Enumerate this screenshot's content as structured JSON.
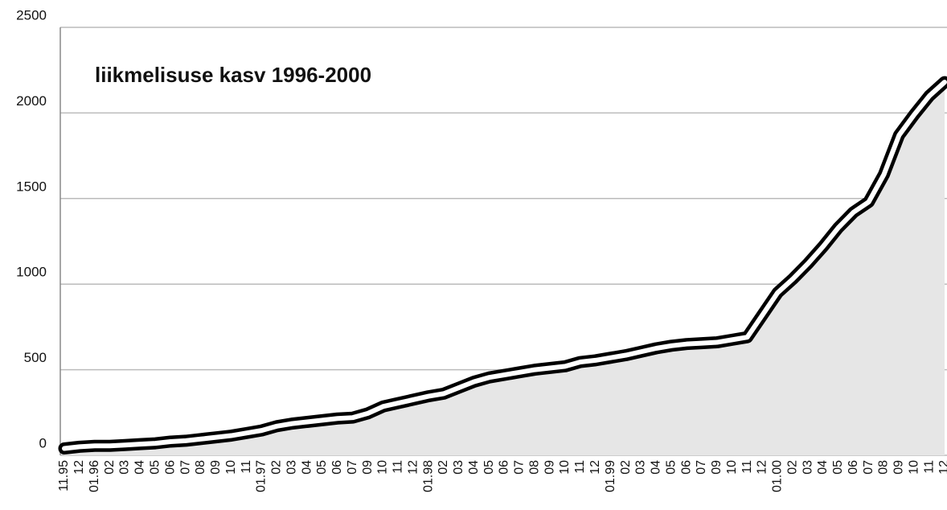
{
  "chart_data": {
    "type": "area",
    "title": "liikmelisuse kasv 1996-2000",
    "categories": [
      "11.95",
      "12",
      "01.96",
      "02",
      "03",
      "04",
      "05",
      "06",
      "07",
      "08",
      "09",
      "10",
      "11",
      "01.97",
      "02",
      "03",
      "04",
      "05",
      "06",
      "07",
      "09",
      "10",
      "11",
      "12",
      "01.98",
      "02",
      "03",
      "04",
      "05",
      "06",
      "07",
      "08",
      "09",
      "10",
      "11",
      "12",
      "01.99",
      "02",
      "03",
      "04",
      "05",
      "06",
      "07",
      "09",
      "10",
      "11",
      "12",
      "01.00",
      "02",
      "03",
      "04",
      "05",
      "06",
      "07",
      "08",
      "09",
      "10",
      "11",
      "12"
    ],
    "series": [
      {
        "color": "#e6e6e6",
        "values": [
          40,
          50,
          55,
          55,
          60,
          65,
          70,
          80,
          85,
          95,
          105,
          115,
          130,
          145,
          170,
          185,
          195,
          205,
          215,
          220,
          245,
          285,
          305,
          325,
          345,
          360,
          395,
          430,
          455,
          470,
          485,
          500,
          510,
          520,
          545,
          555,
          570,
          585,
          605,
          625,
          640,
          650,
          655,
          660,
          675,
          690,
          820,
          950,
          1030,
          1120,
          1220,
          1330,
          1420,
          1480,
          1640,
          1870,
          1990,
          2100,
          2180
        ]
      }
    ],
    "ylim": [
      0,
      2500
    ],
    "yticks": [
      0,
      500,
      1000,
      1500,
      2000,
      2500
    ],
    "grid": true
  }
}
